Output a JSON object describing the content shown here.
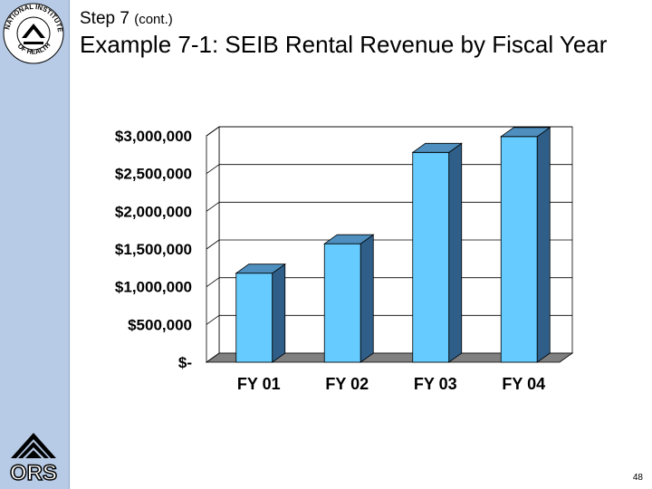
{
  "header": {
    "step": "Step 7",
    "step_suffix": "(cont.)",
    "title": "Example 7-1:  SEIB Rental Revenue by Fiscal Year"
  },
  "logos": {
    "seal_text": "NATIONAL INSTITUTES OF HEALTH",
    "ors_text": "ORS"
  },
  "footer": {
    "slide_number": "48"
  },
  "colors": {
    "sidebar": "#b7cbe6",
    "bar_front": "#66ccff",
    "bar_side": "#2f5f88",
    "bar_top": "#4e8fbf",
    "floor": "#808080"
  },
  "chart_data": {
    "type": "bar",
    "style": "3d",
    "title": "",
    "xlabel": "",
    "ylabel": "",
    "categories": [
      "FY 01",
      "FY 02",
      "FY 03",
      "FY 04"
    ],
    "values": [
      1180000,
      1570000,
      2780000,
      2990000
    ],
    "ylim": [
      0,
      3000000
    ],
    "ytick_values": [
      0,
      500000,
      1000000,
      1500000,
      2000000,
      2500000,
      3000000
    ],
    "ytick_labels": [
      "$-",
      "$500,000",
      "$1,000,000",
      "$1,500,000",
      "$2,000,000",
      "$2,500,000",
      "$3,000,000"
    ],
    "grid": true,
    "legend": "none"
  }
}
